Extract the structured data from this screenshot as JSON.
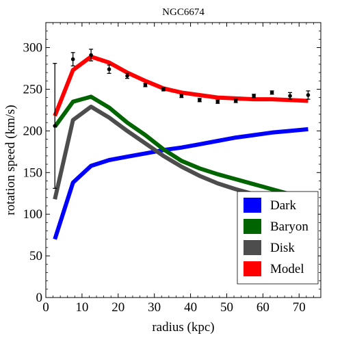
{
  "chart_data": {
    "type": "line",
    "title": "NGC6674",
    "xlabel": "radius (kpc)",
    "ylabel": "rotation speed (km/s)",
    "xlim": [
      0,
      76
    ],
    "ylim": [
      0,
      330
    ],
    "xticks": [
      0,
      10,
      20,
      30,
      40,
      50,
      60,
      70
    ],
    "yticks": [
      0,
      50,
      100,
      150,
      200,
      250,
      300
    ],
    "grid": false,
    "legend_position": "bottom-right",
    "series": [
      {
        "name": "Dark",
        "color": "#0000ff",
        "x": [
          2.5,
          7.5,
          12.5,
          17.5,
          22.5,
          27.5,
          32.5,
          37.5,
          42.5,
          47.5,
          52.5,
          57.5,
          62.5,
          67.5,
          72.5
        ],
        "y": [
          70,
          138,
          158,
          165,
          169,
          173,
          177,
          180,
          184,
          188,
          192,
          195,
          198,
          200,
          202
        ]
      },
      {
        "name": "Baryon",
        "color": "#006400",
        "x": [
          2.5,
          7.5,
          12.5,
          17.5,
          22.5,
          27.5,
          32.5,
          37.5,
          42.5,
          47.5,
          52.5,
          57.5,
          62.5,
          67.5,
          72.5
        ],
        "y": [
          205,
          235,
          241,
          228,
          210,
          195,
          178,
          164,
          155,
          148,
          142,
          136,
          130,
          124,
          119
        ]
      },
      {
        "name": "Disk",
        "color": "#4d4d4d",
        "x": [
          2.5,
          7.5,
          12.5,
          17.5,
          22.5,
          27.5,
          32.5,
          37.5,
          42.5,
          47.5,
          52.5,
          57.5,
          62.5,
          67.5,
          72.5
        ],
        "y": [
          118,
          213,
          229,
          216,
          200,
          185,
          170,
          157,
          146,
          137,
          130,
          124,
          118,
          112,
          108
        ]
      },
      {
        "name": "Model",
        "color": "#ff0000",
        "x": [
          2.5,
          7.5,
          12.5,
          17.5,
          22.5,
          27.5,
          32.5,
          37.5,
          42.5,
          47.5,
          52.5,
          57.5,
          62.5,
          67.5,
          72.5
        ],
        "y": [
          218,
          273,
          289,
          282,
          270,
          260,
          251,
          246,
          243,
          240,
          239,
          238,
          238,
          237,
          236
        ]
      }
    ],
    "observed": {
      "x": [
        2.5,
        7.5,
        12.5,
        17.5,
        22.5,
        27.5,
        32.5,
        37.5,
        42.5,
        47.5,
        52.5,
        57.5,
        62.5,
        67.5,
        72.5
      ],
      "y": [
        206,
        286,
        291,
        274,
        266,
        255,
        250,
        242,
        237,
        235,
        236,
        242,
        246,
        242,
        243
      ],
      "err": [
        75,
        8,
        7,
        5,
        3,
        2,
        2,
        2,
        2,
        2,
        2,
        2,
        2,
        4,
        5
      ]
    }
  }
}
